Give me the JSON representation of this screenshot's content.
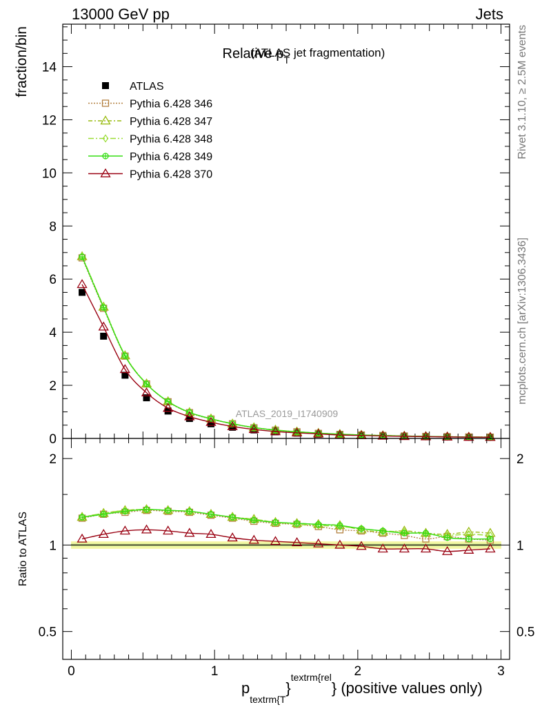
{
  "header": {
    "left": "13000 GeV pp",
    "right": "Jets"
  },
  "side_labels": {
    "rivet": "Rivet 3.1.10, ≥ 2.5M events",
    "mcplots": "mcplots.cern.ch [arXiv:1306.3436]"
  },
  "chart_data": [
    {
      "type": "line",
      "panel": "main",
      "title_main": "Relative p",
      "title_sub": "T",
      "title_rest": " (ATLAS jet fragmentation)",
      "ylabel": "fraction/bin",
      "watermark": "ATLAS_2019_I1740909",
      "xlim": [
        -0.06,
        3.06
      ],
      "ylim": [
        0,
        15.6
      ],
      "yticks": [
        0,
        2,
        4,
        6,
        8,
        10,
        12,
        14
      ],
      "x": [
        0.075,
        0.225,
        0.375,
        0.525,
        0.675,
        0.825,
        0.975,
        1.125,
        1.275,
        1.425,
        1.575,
        1.725,
        1.875,
        2.025,
        2.175,
        2.325,
        2.475,
        2.625,
        2.775,
        2.925
      ],
      "series": [
        {
          "name": "ATLAS",
          "color": "#000000",
          "marker": "square",
          "values": [
            5.5,
            3.85,
            2.38,
            1.53,
            1.03,
            0.75,
            0.55,
            0.42,
            0.32,
            0.25,
            0.2,
            0.16,
            0.13,
            0.11,
            0.095,
            0.08,
            0.07,
            0.06,
            0.05,
            0.045
          ]
        },
        {
          "name": "Pythia 6.428 346",
          "color": "#b38040",
          "marker": "square-open",
          "dash": "2,2",
          "values": [
            6.8,
            4.9,
            3.1,
            2.05,
            1.38,
            0.97,
            0.73,
            0.55,
            0.4,
            0.31,
            0.25,
            0.19,
            0.15,
            0.13,
            0.11,
            0.09,
            0.075,
            0.065,
            0.055,
            0.05
          ]
        },
        {
          "name": "Pythia 6.428 347",
          "color": "#99bb11",
          "marker": "triangle-open",
          "dash": "6,3,2,3",
          "values": [
            6.85,
            4.95,
            3.12,
            2.06,
            1.39,
            0.98,
            0.74,
            0.55,
            0.41,
            0.32,
            0.25,
            0.2,
            0.16,
            0.13,
            0.11,
            0.095,
            0.078,
            0.066,
            0.057,
            0.05
          ]
        },
        {
          "name": "Pythia 6.428 348",
          "color": "#99dd33",
          "marker": "diamond-open",
          "dash": "8,3,2,3",
          "values": [
            6.87,
            4.96,
            3.13,
            2.06,
            1.39,
            0.98,
            0.74,
            0.56,
            0.41,
            0.32,
            0.25,
            0.2,
            0.16,
            0.13,
            0.11,
            0.094,
            0.077,
            0.066,
            0.056,
            0.05
          ]
        },
        {
          "name": "Pythia 6.428 349",
          "color": "#33dd11",
          "marker": "circle-cross",
          "dash": "",
          "values": [
            6.84,
            4.93,
            3.11,
            2.05,
            1.39,
            0.98,
            0.74,
            0.55,
            0.41,
            0.31,
            0.25,
            0.2,
            0.16,
            0.13,
            0.11,
            0.09,
            0.078,
            0.063,
            0.052,
            0.047
          ]
        },
        {
          "name": "Pythia 6.428 370",
          "color": "#990011",
          "marker": "triangle-open",
          "dash": "",
          "values": [
            5.8,
            4.2,
            2.6,
            1.72,
            1.14,
            0.82,
            0.61,
            0.45,
            0.34,
            0.26,
            0.21,
            0.17,
            0.13,
            0.11,
            0.093,
            0.078,
            0.068,
            0.057,
            0.048,
            0.044
          ]
        }
      ]
    },
    {
      "type": "line",
      "panel": "ratio",
      "ylabel": "Ratio to ATLAS",
      "xlabel_main": "p",
      "xlabel_sub": "textrm{T",
      "xlabel_brace": "}",
      "xlabel_sup": "textrm{rel",
      "xlabel_rest": "} (positive values only)",
      "xlim": [
        -0.06,
        3.06
      ],
      "ylim": [
        0.4,
        2.35
      ],
      "log_y": true,
      "yticks": [
        0.5,
        1,
        2
      ],
      "ytick_labels": [
        "0.5",
        "1",
        "2"
      ],
      "xticks": [
        0,
        1,
        2,
        3
      ],
      "xtick_labels": [
        "0",
        "1",
        "2",
        "3"
      ],
      "reference": 1,
      "band_halfwidth": 0.03,
      "x": [
        0.075,
        0.225,
        0.375,
        0.525,
        0.675,
        0.825,
        0.975,
        1.125,
        1.275,
        1.425,
        1.575,
        1.725,
        1.875,
        2.025,
        2.175,
        2.325,
        2.475,
        2.625,
        2.775,
        2.925
      ],
      "series": [
        {
          "name": "Pythia 6.428 346",
          "color": "#b38040",
          "marker": "square-open",
          "dash": "2,2",
          "values": [
            1.24,
            1.28,
            1.3,
            1.32,
            1.31,
            1.3,
            1.27,
            1.24,
            1.21,
            1.19,
            1.18,
            1.16,
            1.13,
            1.12,
            1.1,
            1.08,
            1.05,
            1.07,
            1.05,
            1.04
          ]
        },
        {
          "name": "Pythia 6.428 347",
          "color": "#99bb11",
          "marker": "triangle-open",
          "dash": "6,3,2,3",
          "values": [
            1.25,
            1.29,
            1.32,
            1.33,
            1.32,
            1.31,
            1.28,
            1.25,
            1.23,
            1.2,
            1.19,
            1.18,
            1.17,
            1.13,
            1.11,
            1.12,
            1.1,
            1.09,
            1.11,
            1.1
          ]
        },
        {
          "name": "Pythia 6.428 348",
          "color": "#99dd33",
          "marker": "diamond-open",
          "dash": "8,3,2,3",
          "values": [
            1.25,
            1.29,
            1.32,
            1.33,
            1.32,
            1.31,
            1.28,
            1.25,
            1.23,
            1.2,
            1.18,
            1.17,
            1.16,
            1.14,
            1.12,
            1.11,
            1.09,
            1.08,
            1.09,
            1.08
          ]
        },
        {
          "name": "Pythia 6.428 349",
          "color": "#33dd11",
          "marker": "circle-cross",
          "dash": "",
          "values": [
            1.25,
            1.28,
            1.31,
            1.33,
            1.32,
            1.31,
            1.28,
            1.25,
            1.22,
            1.2,
            1.19,
            1.18,
            1.17,
            1.14,
            1.12,
            1.1,
            1.1,
            1.06,
            1.05,
            1.05
          ]
        },
        {
          "name": "Pythia 6.428 370",
          "color": "#990011",
          "marker": "triangle-open",
          "dash": "",
          "values": [
            1.05,
            1.09,
            1.12,
            1.13,
            1.12,
            1.1,
            1.09,
            1.06,
            1.04,
            1.03,
            1.02,
            1.01,
            1.0,
            0.99,
            0.97,
            0.97,
            0.97,
            0.95,
            0.96,
            0.97
          ]
        }
      ]
    }
  ]
}
